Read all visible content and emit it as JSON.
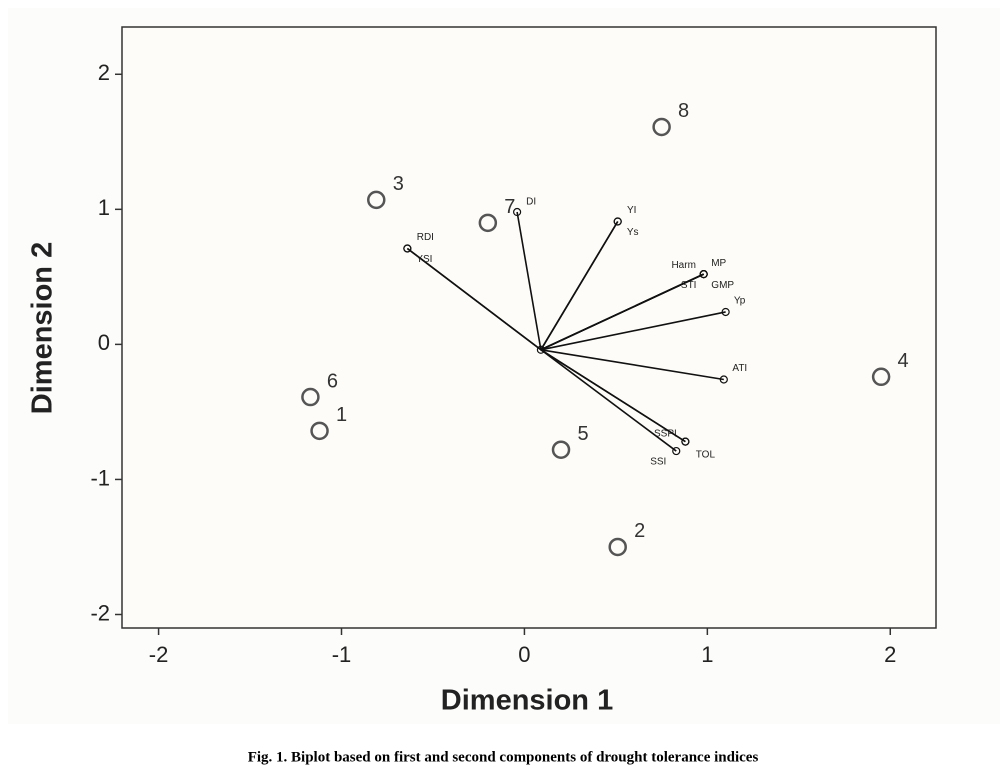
{
  "chart_data": {
    "type": "biplot",
    "xlabel": "Dimension 1",
    "ylabel": "Dimension 2",
    "caption": "Fig. 1. Biplot based on first and second components of drought tolerance indices",
    "xlim": [
      -2.2,
      2.25
    ],
    "ylim": [
      -2.1,
      2.35
    ],
    "xticks": [
      -2,
      -1,
      0,
      1,
      2
    ],
    "yticks": [
      -2,
      -1,
      0,
      1,
      2
    ],
    "points": {
      "labels": [
        "1",
        "2",
        "3",
        "4",
        "5",
        "6",
        "7",
        "8"
      ],
      "x": [
        -1.12,
        0.51,
        -0.81,
        1.95,
        0.2,
        -1.17,
        -0.2,
        0.75
      ],
      "y": [
        -0.64,
        -1.5,
        1.07,
        -0.24,
        -0.78,
        -0.39,
        0.9,
        1.61
      ]
    },
    "vectors": {
      "origin": [
        0.09,
        -0.04
      ],
      "names": [
        "RDI",
        "YSI",
        "DI",
        "YI",
        "Ys",
        "Harm",
        "MP",
        "STI",
        "GMP",
        "Yp",
        "ATI",
        "SSPI",
        "TOL",
        "SSI"
      ],
      "x": [
        -0.64,
        -0.64,
        -0.04,
        0.51,
        0.51,
        0.98,
        0.98,
        0.98,
        0.98,
        1.1,
        1.09,
        0.88,
        0.88,
        0.83
      ],
      "y": [
        0.71,
        0.71,
        0.98,
        0.91,
        0.91,
        0.52,
        0.52,
        0.52,
        0.52,
        0.24,
        -0.26,
        -0.72,
        -0.72,
        -0.79
      ]
    }
  }
}
